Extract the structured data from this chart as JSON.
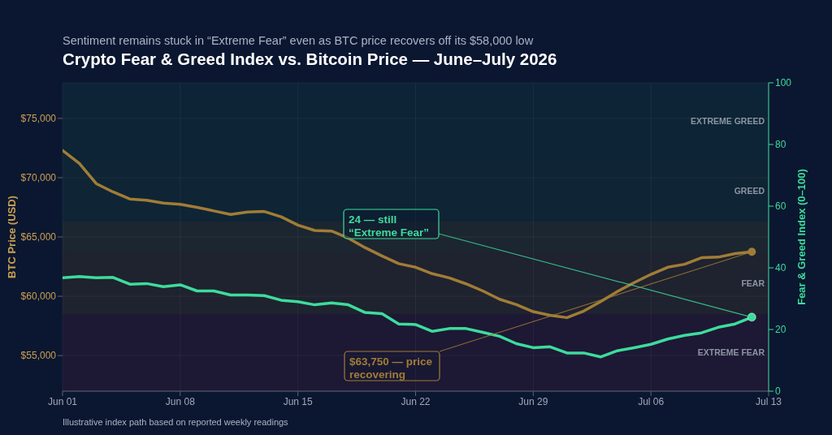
{
  "chart_data": {
    "type": "line",
    "subtitle": "Sentiment remains stuck in “Extreme Fear” even as BTC price recovers off its $58,000 low",
    "title": "Crypto Fear & Greed Index vs. Bitcoin Price — June–July 2026",
    "ylabel": "BTC Price (USD)",
    "y2label": "Fear & Greed Index (0–100)",
    "x": [
      "2026-06-01",
      "2026-06-02",
      "2026-06-03",
      "2026-06-04",
      "2026-06-05",
      "2026-06-06",
      "2026-06-07",
      "2026-06-08",
      "2026-06-09",
      "2026-06-10",
      "2026-06-11",
      "2026-06-12",
      "2026-06-13",
      "2026-06-14",
      "2026-06-15",
      "2026-06-16",
      "2026-06-17",
      "2026-06-18",
      "2026-06-19",
      "2026-06-20",
      "2026-06-21",
      "2026-06-22",
      "2026-06-23",
      "2026-06-24",
      "2026-06-25",
      "2026-06-26",
      "2026-06-27",
      "2026-06-28",
      "2026-06-29",
      "2026-06-30",
      "2026-07-01",
      "2026-07-02",
      "2026-07-03",
      "2026-07-04",
      "2026-07-05",
      "2026-07-06",
      "2026-07-07",
      "2026-07-08",
      "2026-07-09",
      "2026-07-10",
      "2026-07-11",
      "2026-07-12"
    ],
    "series": [
      {
        "color": "#a07d36",
        "values": [
          72300,
          71200,
          69500,
          68800,
          68200,
          68100,
          67850,
          67750,
          67500,
          67200,
          66900,
          67100,
          67150,
          66700,
          66000,
          65550,
          65500,
          64900,
          64100,
          63400,
          62750,
          62450,
          61900,
          61550,
          61050,
          60450,
          59750,
          59300,
          58700,
          58400,
          58200,
          58750,
          59550,
          60400,
          61150,
          61850,
          62450,
          62700,
          63250,
          63300,
          63600,
          63750
        ]
      },
      {
        "color": "#3ddc9c",
        "axis": "y2",
        "values": [
          36.8,
          37.2,
          36.8,
          36.9,
          34.7,
          34.9,
          33.9,
          34.5,
          32.5,
          32.5,
          31.2,
          31.2,
          31.0,
          29.5,
          29.0,
          28.0,
          28.6,
          28.0,
          25.5,
          25.1,
          21.8,
          21.6,
          19.4,
          20.3,
          20.3,
          19.1,
          17.8,
          15.4,
          14.1,
          14.4,
          12.4,
          12.4,
          11.1,
          13.1,
          14.1,
          15.2,
          16.9,
          18.1,
          18.9,
          20.7,
          21.8,
          24
        ]
      }
    ],
    "xlim": [
      "2026-06-01",
      "2026-07-13"
    ],
    "xticks": [
      {
        "value": "2026-06-01",
        "label": "Jun 01"
      },
      {
        "value": "2026-06-08",
        "label": "Jun 08"
      },
      {
        "value": "2026-06-15",
        "label": "Jun 15"
      },
      {
        "value": "2026-06-22",
        "label": "Jun 22"
      },
      {
        "value": "2026-06-29",
        "label": "Jun 29"
      },
      {
        "value": "2026-07-06",
        "label": "Jul 06"
      },
      {
        "value": "2026-07-13",
        "label": "Jul 13"
      }
    ],
    "ylim": [
      52000,
      78000
    ],
    "yticks": [
      {
        "value": 55000,
        "label": "$55,000"
      },
      {
        "value": 60000,
        "label": "$60,000"
      },
      {
        "value": 65000,
        "label": "$65,000"
      },
      {
        "value": 70000,
        "label": "$70,000"
      },
      {
        "value": 75000,
        "label": "$75,000"
      }
    ],
    "y2lim": [
      0,
      100
    ],
    "y2ticks": [
      0,
      20,
      40,
      60,
      80,
      100
    ],
    "bands": [
      {
        "axis": "y2",
        "from": 0,
        "to": 25,
        "label": "EXTREME FEAR",
        "color": "#c0285a"
      },
      {
        "axis": "y2",
        "from": 25,
        "to": 45,
        "label": "FEAR",
        "color": "#d88a2a"
      },
      {
        "axis": "y2",
        "from": 45,
        "to": 55,
        "color": "#b8b030"
      },
      {
        "axis": "y2",
        "from": 55,
        "to": 75,
        "label": "GREED",
        "color": "#3aa060"
      },
      {
        "axis": "y2",
        "from": 75,
        "to": 100,
        "label": "EXTREME GREED",
        "color": "#1fa070"
      }
    ],
    "annotations": [
      "24 — still\n“Extreme Fear”",
      {
        "text": "$63,750 — price\nrecovering",
        "x": "2026-07-12",
        "y": 63750
      },
      "Illustrative index path based on reported weekly readings"
    ],
    "grid": true,
    "legend": false,
    "marker": "none",
    "line_style": "solid"
  }
}
